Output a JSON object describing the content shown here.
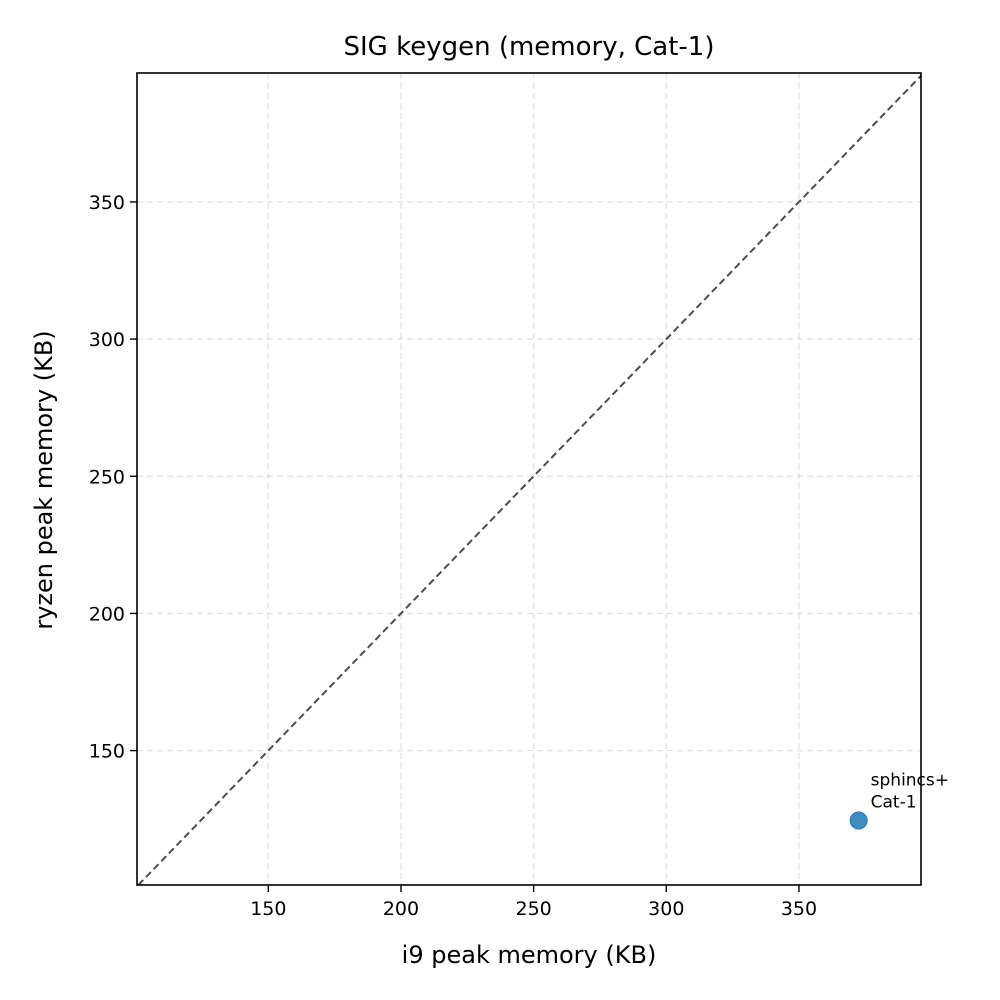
{
  "chart_data": {
    "type": "scatter",
    "title": "SIG keygen (memory, Cat-1)",
    "xlabel": "i9 peak memory (KB)",
    "ylabel": "ryzen peak memory (KB)",
    "xlim": [
      100.5,
      396
    ],
    "ylim": [
      101,
      397
    ],
    "xticks": [
      150,
      200,
      250,
      300,
      350
    ],
    "yticks": [
      150,
      200,
      250,
      300,
      350
    ],
    "grid": true,
    "reference_line": "y = x",
    "points": [
      {
        "x": 372.5,
        "y": 124.5,
        "label_lines": [
          "sphincs+",
          "Cat-1"
        ],
        "color": "#1f77b4"
      }
    ]
  }
}
